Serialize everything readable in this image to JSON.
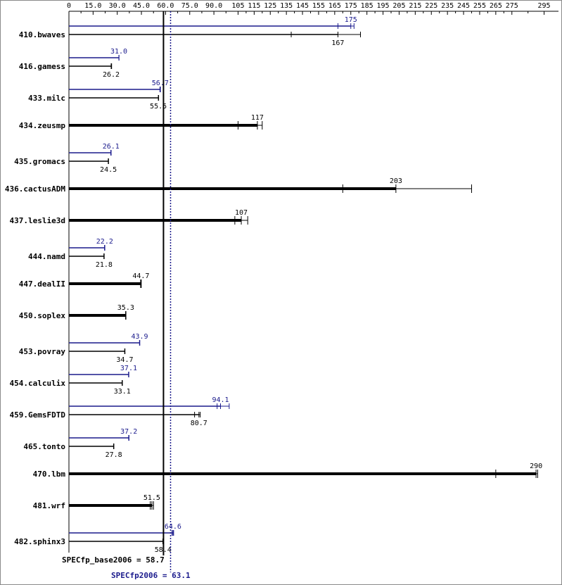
{
  "colors": {
    "base": "#000000",
    "peak": "#1a1a8c",
    "background": "#ffffff"
  },
  "chart_data": {
    "type": "bar",
    "orientation": "horizontal",
    "x_ticks": [
      "0",
      "15.0",
      "30.0",
      "45.0",
      "60.0",
      "75.0",
      "90.0",
      "105",
      "115",
      "125",
      "135",
      "145",
      "155",
      "165",
      "175",
      "185",
      "195",
      "205",
      "215",
      "225",
      "235",
      "245",
      "255",
      "265",
      "275",
      "295"
    ],
    "xlim": [
      0,
      295
    ],
    "summary": {
      "base_label": "SPECfp_base2006 = 58.7",
      "base_value": 58.7,
      "peak_label": "SPECfp2006 = 63.1",
      "peak_value": 63.1
    },
    "benchmarks": [
      {
        "name": "410.bwaves",
        "base": 167,
        "base_label": "167",
        "peak": 175,
        "peak_label": "175",
        "base_runs": [
          138,
          167,
          181
        ],
        "peak_runs": [
          167,
          175,
          177
        ]
      },
      {
        "name": "416.gamess",
        "base": 26.2,
        "base_label": "26.2",
        "peak": 31.0,
        "peak_label": "31.0",
        "base_runs": [
          26.2,
          26.3,
          26.5
        ],
        "peak_runs": [
          31.0,
          31.0,
          31.1
        ]
      },
      {
        "name": "433.milc",
        "base": 55.5,
        "base_label": "55.5",
        "peak": 56.7,
        "peak_label": "56.7",
        "base_runs": [
          55.5,
          55.6,
          55.7
        ],
        "peak_runs": [
          56.5,
          56.7,
          56.8
        ]
      },
      {
        "name": "434.zeusmp",
        "base": 117,
        "base_label": "117",
        "peak": null,
        "peak_label": "",
        "base_runs": [
          105,
          117,
          120
        ]
      },
      {
        "name": "435.gromacs",
        "base": 24.5,
        "base_label": "24.5",
        "peak": 26.1,
        "peak_label": "26.1",
        "base_runs": [
          24.4,
          24.5,
          24.6
        ],
        "peak_runs": [
          26.0,
          26.1,
          26.2
        ]
      },
      {
        "name": "436.cactusADM",
        "base": 203,
        "base_label": "203",
        "peak": null,
        "peak_label": "",
        "base_runs": [
          170,
          203,
          250
        ]
      },
      {
        "name": "437.leslie3d",
        "base": 107,
        "base_label": "107",
        "peak": null,
        "peak_label": "",
        "base_runs": [
          103,
          107,
          111
        ]
      },
      {
        "name": "444.namd",
        "base": 21.8,
        "base_label": "21.8",
        "peak": 22.2,
        "peak_label": "22.2",
        "base_runs": [
          21.7,
          21.8,
          21.9
        ],
        "peak_runs": [
          22.1,
          22.2,
          22.3
        ]
      },
      {
        "name": "447.dealII",
        "base": 44.7,
        "base_label": "44.7",
        "peak": null,
        "peak_label": "",
        "base_runs": [
          44.5,
          44.7,
          44.9
        ]
      },
      {
        "name": "450.soplex",
        "base": 35.3,
        "base_label": "35.3",
        "peak": null,
        "peak_label": "",
        "base_runs": [
          35.2,
          35.3,
          35.4
        ]
      },
      {
        "name": "453.povray",
        "base": 34.7,
        "base_label": "34.7",
        "peak": 43.9,
        "peak_label": "43.9",
        "base_runs": [
          34.6,
          34.7,
          34.8
        ],
        "peak_runs": [
          43.8,
          43.9,
          44.0
        ]
      },
      {
        "name": "454.calculix",
        "base": 33.1,
        "base_label": "33.1",
        "peak": 37.1,
        "peak_label": "37.1",
        "base_runs": [
          33.0,
          33.1,
          33.2
        ],
        "peak_runs": [
          37.0,
          37.1,
          37.2
        ]
      },
      {
        "name": "459.GemsFDTD",
        "base": 80.7,
        "base_label": "80.7",
        "peak": 94.1,
        "peak_label": "94.1",
        "base_runs": [
          78,
          80.7,
          81.5
        ],
        "peak_runs": [
          92,
          94.1,
          99.5
        ]
      },
      {
        "name": "465.tonto",
        "base": 27.8,
        "base_label": "27.8",
        "peak": 37.2,
        "peak_label": "37.2",
        "base_runs": [
          27.7,
          27.8,
          27.9
        ],
        "peak_runs": [
          37.1,
          37.2,
          37.3
        ]
      },
      {
        "name": "470.lbm",
        "base": 290,
        "base_label": "290",
        "peak": null,
        "peak_label": "",
        "base_runs": [
          265,
          290,
          291
        ]
      },
      {
        "name": "481.wrf",
        "base": 51.5,
        "base_label": "51.5",
        "peak": null,
        "peak_label": "",
        "base_runs": [
          50.5,
          51.5,
          52.5
        ]
      },
      {
        "name": "482.sphinx3",
        "base": 58.4,
        "base_label": "58.4",
        "peak": 64.6,
        "peak_label": "64.6",
        "base_runs": [
          58.3,
          58.4,
          58.5
        ],
        "peak_runs": [
          64.0,
          64.6,
          65.0
        ]
      }
    ]
  }
}
